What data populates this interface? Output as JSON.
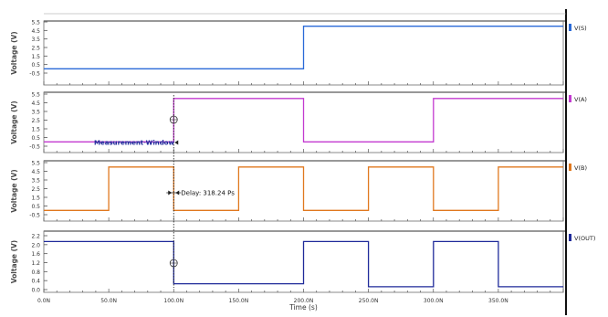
{
  "chart_data": [
    {
      "type": "line",
      "ylabel": "Voltage (V)",
      "ylim": [
        -0.5,
        5.5
      ],
      "yticks": [
        "5.5",
        "4.5",
        "3.5",
        "2.5",
        "1.5",
        "0.5",
        "-0.5"
      ],
      "xlim": [
        0,
        400
      ],
      "grid": false,
      "legend_position": "right",
      "series": [
        {
          "name": "V(S)",
          "color": "#2a6ad8",
          "x": [
            0,
            200,
            200,
            400
          ],
          "values": [
            0,
            0,
            5,
            5
          ]
        }
      ]
    },
    {
      "type": "line",
      "ylabel": "Voltage (V)",
      "ylim": [
        -0.5,
        5.5
      ],
      "yticks": [
        "5.5",
        "4.5",
        "3.5",
        "2.5",
        "1.5",
        "0.5",
        "-0.5"
      ],
      "xlim": [
        0,
        400
      ],
      "grid": false,
      "legend_position": "right",
      "series": [
        {
          "name": "V(A)",
          "color": "#c33ad0",
          "x": [
            0,
            100,
            100,
            200,
            200,
            300,
            300,
            400
          ],
          "values": [
            0,
            0,
            5,
            5,
            0,
            0,
            5,
            5
          ]
        }
      ],
      "annotations": [
        {
          "text": "Measurement Window",
          "x": 100,
          "y": 0
        }
      ]
    },
    {
      "type": "line",
      "ylabel": "Voltage (V)",
      "ylim": [
        -0.5,
        5.5
      ],
      "yticks": [
        "5.5",
        "4.5",
        "3.5",
        "2.5",
        "1.5",
        "0.5",
        "-0.5"
      ],
      "xlim": [
        0,
        400
      ],
      "grid": false,
      "legend_position": "right",
      "series": [
        {
          "name": "V(B)",
          "color": "#e0781e",
          "x": [
            0,
            50,
            50,
            100,
            100,
            150,
            150,
            200,
            200,
            250,
            250,
            300,
            300,
            350,
            350,
            400
          ],
          "values": [
            0,
            0,
            5,
            5,
            0,
            0,
            5,
            5,
            0,
            0,
            5,
            5,
            0,
            0,
            5,
            5
          ]
        }
      ],
      "annotations": [
        {
          "text": "Delay: 318.24 Ps",
          "x": 100,
          "y": 2.5
        }
      ]
    },
    {
      "type": "line",
      "ylabel": "Voltage (V)",
      "xlabel": "Time (s)",
      "ylim": [
        -0.1,
        2.2
      ],
      "yticks": [
        "2.2",
        "2.0",
        "1.6",
        "1.2",
        "0.8",
        "0.4",
        "0.0"
      ],
      "xlim": [
        0,
        400
      ],
      "xticks": [
        "0.0N",
        "50.0N",
        "100.0N",
        "150.0N",
        "200.0N",
        "250.0N",
        "300.0N",
        "350.0N"
      ],
      "xtick_values": [
        0,
        50,
        100,
        150,
        200,
        250,
        300,
        350
      ],
      "grid": false,
      "legend_position": "right",
      "series": [
        {
          "name": "V(OUT)",
          "color": "#1f2a9a",
          "x": [
            0,
            100,
            100,
            200,
            200,
            250,
            250,
            300,
            300,
            350,
            350,
            400
          ],
          "values": [
            1.95,
            1.95,
            0.15,
            0.15,
            1.95,
            1.95,
            0.02,
            0.02,
            1.95,
            1.95,
            0.02,
            0.02
          ]
        }
      ]
    }
  ]
}
